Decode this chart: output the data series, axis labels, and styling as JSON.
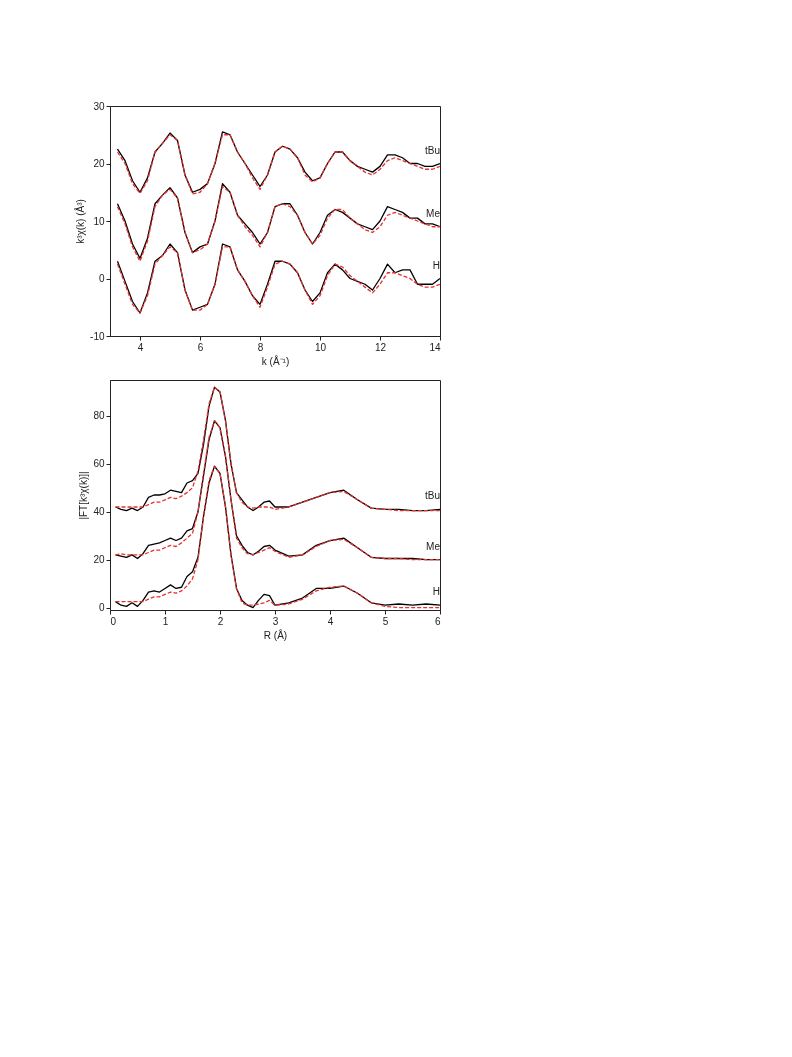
{
  "chart_data": [
    {
      "type": "line",
      "xlabel": "k (Å⁻¹)",
      "ylabel": "k³χ(k) (Å³)",
      "xlim": [
        3,
        14
      ],
      "ylim": [
        -10,
        30
      ],
      "xticks": [
        4,
        6,
        8,
        10,
        12,
        14
      ],
      "yticks": [
        -10,
        0,
        10,
        20,
        30
      ],
      "grid": false,
      "legend": false,
      "marker": "none",
      "x": [
        3.25,
        3.5,
        3.75,
        4,
        4.25,
        4.5,
        4.75,
        5,
        5.25,
        5.5,
        5.75,
        6,
        6.25,
        6.5,
        6.75,
        7,
        7.25,
        7.5,
        7.75,
        8,
        8.25,
        8.5,
        8.75,
        9,
        9.25,
        9.5,
        9.75,
        10,
        10.25,
        10.5,
        10.75,
        11,
        11.25,
        11.5,
        11.75,
        12,
        12.25,
        12.5,
        12.75,
        13,
        13.25,
        13.5,
        13.75,
        14
      ],
      "series": [
        {
          "name": "tBu",
          "color": "#000000",
          "line_style": "solid",
          "values": [
            22.5,
            20.5,
            17,
            15,
            17.5,
            22,
            23.5,
            25.3,
            24,
            18,
            15,
            15.5,
            16.5,
            20,
            25.5,
            25,
            22,
            20,
            18,
            16,
            18,
            22,
            23,
            22.5,
            21,
            18.5,
            17,
            17.5,
            20,
            22,
            22,
            20.5,
            19.5,
            19,
            18.5,
            19.5,
            21.5,
            21.5,
            21,
            20,
            20,
            19.5,
            19.5,
            20
          ]
        },
        {
          "color": "#e8312f",
          "line_style": "dashed",
          "values": [
            22,
            20,
            16.5,
            14.8,
            17,
            22,
            23.5,
            25,
            24,
            18,
            14.7,
            15,
            16.5,
            20,
            25,
            25,
            22,
            20,
            17.5,
            15.5,
            18,
            22,
            23,
            22.5,
            21,
            18,
            16.8,
            17.5,
            20,
            22,
            22,
            20.5,
            19.5,
            18.5,
            18,
            19,
            20.5,
            21,
            20.5,
            20,
            19.5,
            19,
            19,
            19.5
          ]
        },
        {
          "name": "Me",
          "color": "#000000",
          "line_style": "solid",
          "values": [
            13,
            10,
            6,
            3.5,
            7,
            13,
            14.5,
            15.8,
            14,
            8,
            4.5,
            5.5,
            6,
            10,
            16.5,
            15,
            11,
            9.5,
            8,
            6,
            8,
            12.5,
            13,
            13,
            11,
            8,
            6,
            8,
            11,
            12,
            11.5,
            10.5,
            9.5,
            9,
            8.5,
            10,
            12.5,
            12,
            11.5,
            10.5,
            10.5,
            9.5,
            9.5,
            9
          ]
        },
        {
          "color": "#e8312f",
          "line_style": "dashed",
          "values": [
            12.5,
            9.5,
            5.5,
            3,
            6.5,
            12.5,
            14.5,
            15.5,
            14,
            8,
            4.5,
            5,
            6,
            10,
            16,
            15,
            11,
            9,
            7.5,
            5.5,
            8,
            12.5,
            13,
            12.5,
            11,
            8,
            6,
            7.5,
            10.5,
            12,
            12,
            10.5,
            9.5,
            8.5,
            8,
            9,
            11,
            11.5,
            11,
            10.5,
            10,
            9.5,
            9,
            9
          ]
        },
        {
          "name": "H",
          "color": "#000000",
          "line_style": "solid",
          "values": [
            3,
            -0.5,
            -4,
            -6,
            -2.5,
            3,
            4,
            6,
            4.5,
            -2,
            -5.5,
            -5,
            -4.5,
            -1,
            6,
            5.5,
            1.5,
            -0.5,
            -3,
            -4.5,
            -1,
            3,
            3,
            2.5,
            1,
            -2,
            -4,
            -2.5,
            1,
            2.5,
            1.5,
            0,
            -0.5,
            -1,
            -2,
            0,
            2.5,
            1,
            1.5,
            1.5,
            -1,
            -1,
            -1,
            0
          ]
        },
        {
          "color": "#e8312f",
          "line_style": "dashed",
          "values": [
            2.5,
            -1,
            -4.5,
            -6,
            -3,
            2.5,
            4,
            5.5,
            4.5,
            -2,
            -5.5,
            -5.5,
            -4.5,
            -1,
            5.5,
            5.5,
            1.5,
            -0.5,
            -3,
            -5,
            -1.5,
            2.5,
            3,
            2.5,
            1,
            -2,
            -4.5,
            -3,
            0.5,
            2.5,
            2,
            0.5,
            -0.5,
            -1.5,
            -2.5,
            -1,
            1,
            1,
            0.5,
            0,
            -1,
            -1.5,
            -1.5,
            -1
          ]
        }
      ]
    },
    {
      "type": "line",
      "xlabel": "R (Å)",
      "ylabel": "|FT[k³χ(k)]|",
      "xlim": [
        0,
        6
      ],
      "ylim": [
        -1,
        95
      ],
      "xticks": [
        0,
        1,
        2,
        3,
        4,
        5,
        6
      ],
      "yticks": [
        0,
        20,
        40,
        60,
        80
      ],
      "grid": false,
      "legend": false,
      "marker": "none",
      "x": [
        0.1,
        0.2,
        0.3,
        0.4,
        0.5,
        0.6,
        0.7,
        0.8,
        0.9,
        1.0,
        1.1,
        1.2,
        1.3,
        1.4,
        1.5,
        1.6,
        1.7,
        1.8,
        1.9,
        2.0,
        2.1,
        2.2,
        2.3,
        2.4,
        2.5,
        2.6,
        2.7,
        2.8,
        2.9,
        3.0,
        3.25,
        3.5,
        3.75,
        4.0,
        4.25,
        4.5,
        4.75,
        5.0,
        5.25,
        5.5,
        5.75,
        6
      ],
      "series": [
        {
          "name": "tBu",
          "color": "#000000",
          "line_style": "solid",
          "values": [
            42,
            41,
            40.5,
            41.5,
            40.5,
            42,
            46,
            47,
            47,
            47.5,
            49,
            48.5,
            48,
            52,
            53,
            56,
            68,
            84,
            92,
            90,
            78,
            60,
            48,
            45,
            42,
            40.5,
            42,
            44,
            44.5,
            42,
            42,
            44,
            46,
            48,
            49,
            45,
            41.5,
            41,
            41,
            40.5,
            40.5,
            41
          ]
        },
        {
          "color": "#e8312f",
          "line_style": "dashed",
          "values": [
            42,
            42,
            42,
            42,
            42,
            42,
            43,
            44,
            44,
            45,
            46,
            45.5,
            46.5,
            48,
            50,
            57,
            70,
            85,
            92,
            90,
            78,
            60,
            48,
            44,
            42,
            41.5,
            42,
            42,
            42,
            41,
            42,
            44,
            46,
            48,
            48.5,
            45,
            41.5,
            41,
            40.5,
            40.5,
            40.5,
            40.5
          ]
        },
        {
          "name": "Me",
          "color": "#000000",
          "line_style": "solid",
          "values": [
            22,
            21.5,
            21,
            22,
            20.5,
            22.5,
            26,
            26.5,
            27,
            28,
            29,
            28,
            29,
            32,
            33,
            40,
            55,
            70,
            78,
            75,
            63,
            45,
            30,
            26,
            23,
            22,
            23.5,
            25.5,
            26,
            24,
            21.5,
            22,
            26,
            28,
            29,
            25,
            21,
            20.5,
            20.5,
            20.5,
            20,
            20
          ]
        },
        {
          "color": "#e8312f",
          "line_style": "dashed",
          "values": [
            22,
            22.5,
            22,
            22,
            22,
            22,
            23,
            24,
            24,
            25,
            26,
            25.5,
            27,
            29,
            31,
            40,
            56,
            71,
            78,
            75,
            63,
            45,
            29,
            25,
            22.5,
            22,
            23,
            24,
            25,
            23.5,
            21,
            22,
            25.5,
            28,
            28.5,
            25,
            21,
            20.5,
            20.5,
            20,
            20,
            20
          ]
        },
        {
          "name": "H",
          "color": "#000000",
          "line_style": "solid",
          "values": [
            2.5,
            1,
            0.5,
            2,
            0.5,
            3,
            6.5,
            7,
            6.5,
            8,
            9.5,
            8,
            8.5,
            13,
            15,
            21,
            38,
            52,
            59,
            56,
            42,
            22,
            8,
            3,
            1,
            0,
            3,
            5.5,
            5,
            1,
            2,
            4,
            8,
            8,
            9,
            6,
            2,
            1,
            1.5,
            1,
            1.5,
            1
          ]
        },
        {
          "color": "#e8312f",
          "line_style": "dashed",
          "values": [
            2.5,
            2.5,
            2.5,
            2.5,
            2.5,
            2.5,
            3.5,
            4.5,
            4.5,
            5.5,
            6.5,
            6,
            7,
            9,
            12,
            20,
            38,
            53,
            59,
            56,
            42,
            22,
            8,
            2,
            1,
            1,
            1.5,
            2,
            3,
            1,
            1.5,
            3.5,
            7,
            8.5,
            9,
            6,
            2,
            0.5,
            0,
            0,
            0,
            0
          ]
        }
      ]
    }
  ]
}
